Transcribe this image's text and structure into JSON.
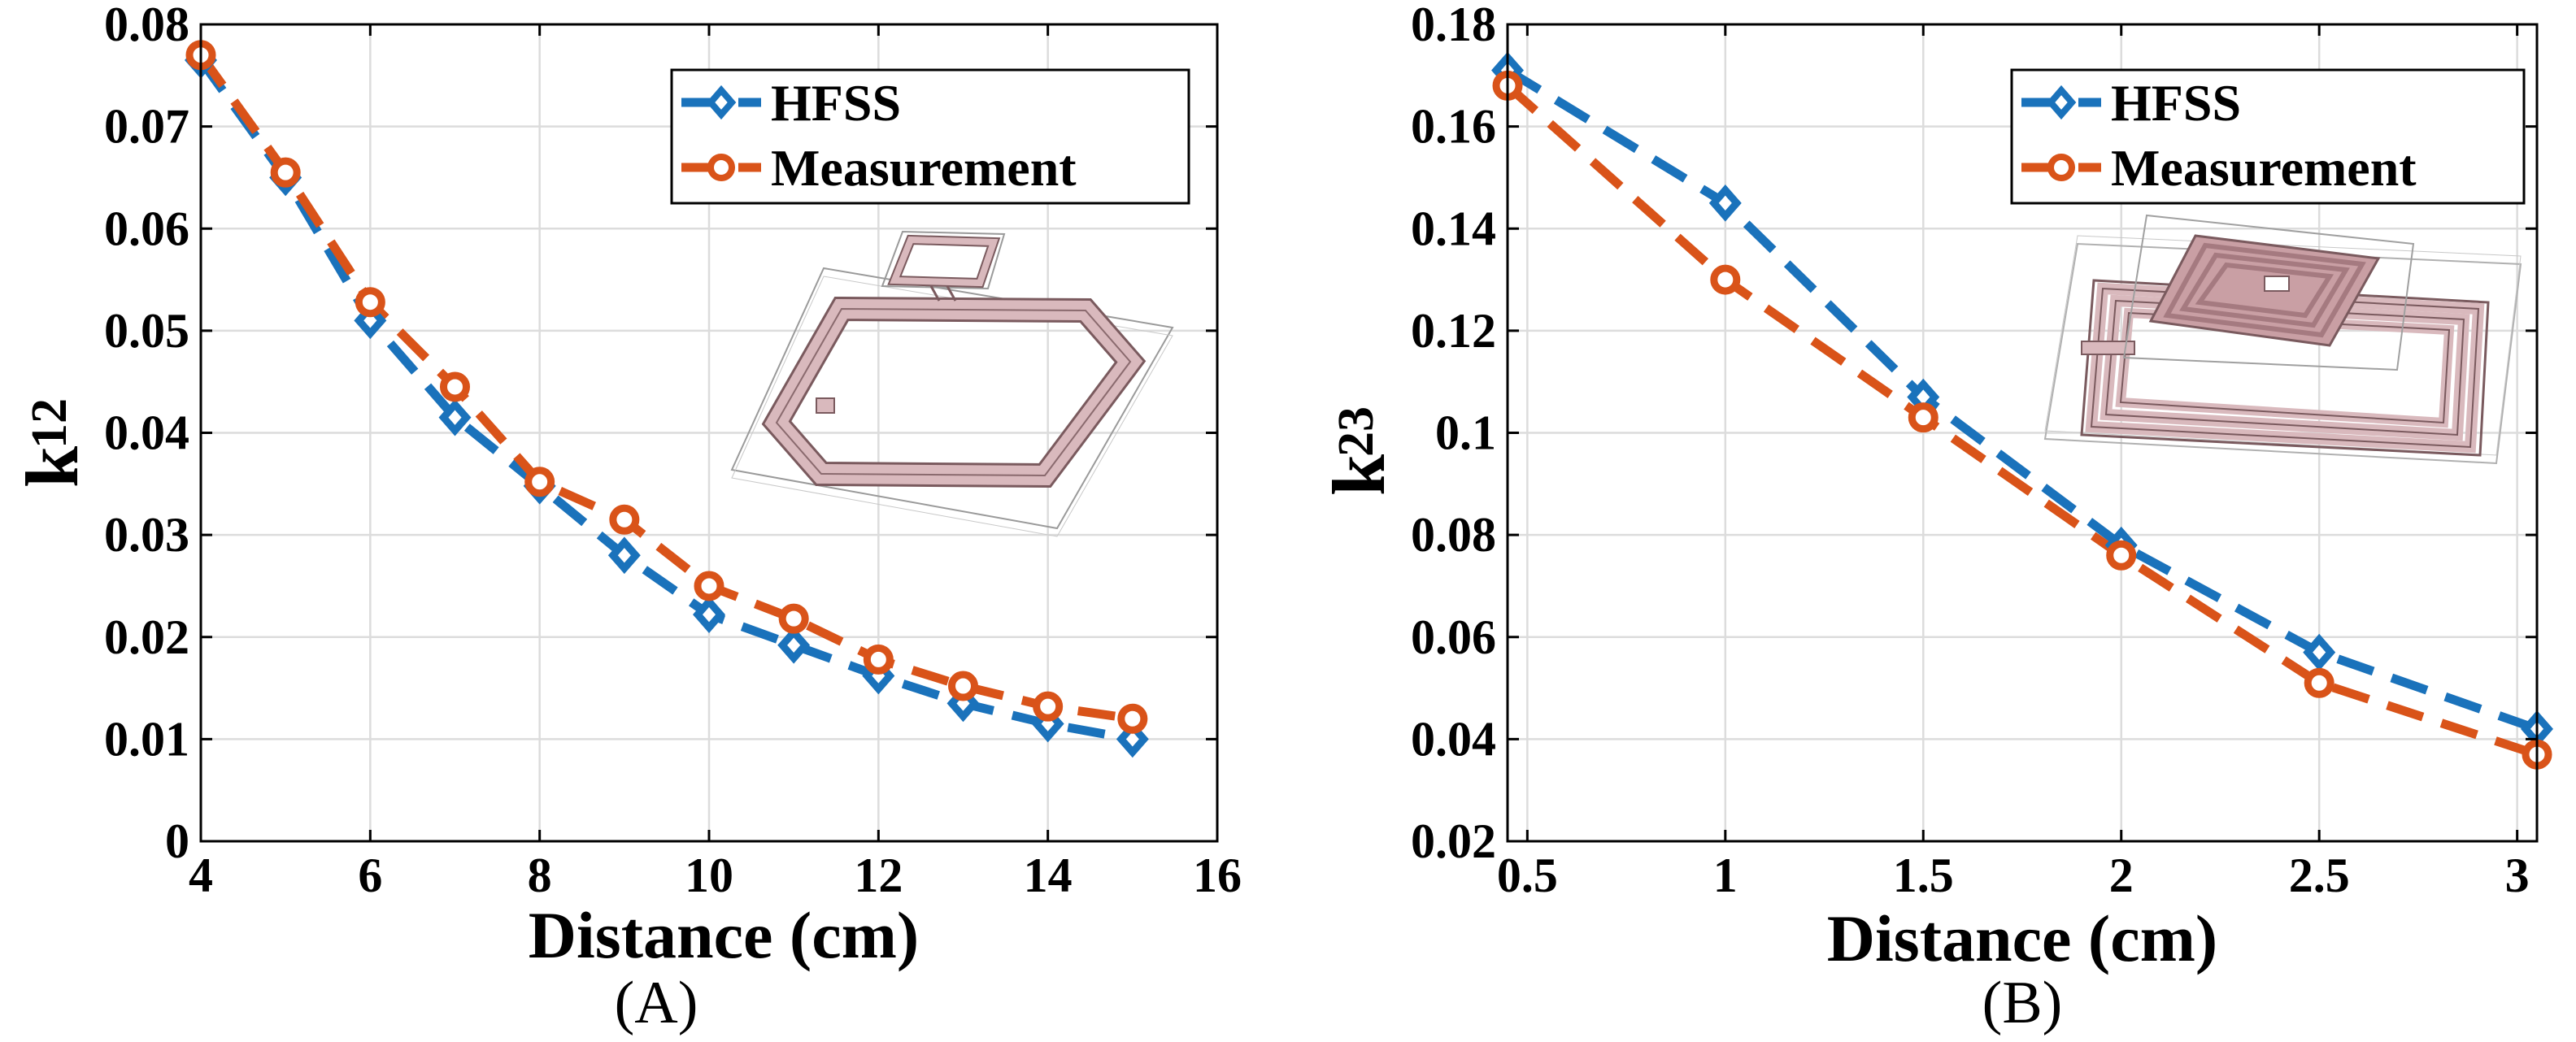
{
  "colors": {
    "hfss": "#1a72bb",
    "measurement": "#d95319",
    "inset_fill": "#d9b9bd",
    "inset_stroke": "#7a5a5e"
  },
  "chart_data": [
    {
      "type": "line",
      "caption": "(A)",
      "xlabel": "Distance (cm)",
      "ylabel_main": "k",
      "ylabel_sub": "12",
      "xlim": [
        4,
        16
      ],
      "ylim": [
        0,
        0.08
      ],
      "xticks": [
        4,
        6,
        8,
        10,
        12,
        14,
        16
      ],
      "yticks": [
        0,
        0.01,
        0.02,
        0.03,
        0.04,
        0.05,
        0.06,
        0.07,
        0.08
      ],
      "xtick_labels": [
        "4",
        "6",
        "8",
        "10",
        "12",
        "14",
        "16"
      ],
      "ytick_labels": [
        "0",
        "0.01",
        "0.02",
        "0.03",
        "0.04",
        "0.05",
        "0.06",
        "0.07",
        "0.08"
      ],
      "grid": true,
      "legend": "top-right",
      "x": [
        4,
        5,
        6,
        7,
        8,
        9,
        10,
        11,
        12,
        13,
        14,
        15
      ],
      "series": [
        {
          "name": "HFSS",
          "marker": "diamond",
          "values": [
            0.0765,
            0.065,
            0.051,
            0.0415,
            0.0348,
            0.028,
            0.0222,
            0.0192,
            0.0162,
            0.0135,
            0.0115,
            0.01
          ]
        },
        {
          "name": "Measurement",
          "marker": "circle",
          "values": [
            0.077,
            0.0655,
            0.0528,
            0.0445,
            0.0352,
            0.0315,
            0.025,
            0.0218,
            0.0178,
            0.0152,
            0.0132,
            0.012
          ]
        }
      ]
    },
    {
      "type": "line",
      "caption": "(B)",
      "xlabel": "Distance (cm)",
      "ylabel_main": "k",
      "ylabel_sub": "23",
      "xlim": [
        0.45,
        3.05
      ],
      "ylim": [
        0.02,
        0.18
      ],
      "xticks": [
        0.5,
        1,
        1.5,
        2,
        2.5,
        3
      ],
      "yticks": [
        0.02,
        0.04,
        0.06,
        0.08,
        0.1,
        0.12,
        0.14,
        0.16,
        0.18
      ],
      "xtick_labels": [
        "0.5",
        "1",
        "1.5",
        "2",
        "2.5",
        "3"
      ],
      "ytick_labels": [
        "0.02",
        "0.04",
        "0.06",
        "0.08",
        "0.1",
        "0.12",
        "0.14",
        "0.16",
        "0.18"
      ],
      "grid": true,
      "legend": "top-right",
      "x": [
        0.45,
        1,
        1.5,
        2,
        2.5,
        3.05
      ],
      "series": [
        {
          "name": "HFSS",
          "marker": "diamond",
          "values": [
            0.171,
            0.145,
            0.107,
            0.078,
            0.057,
            0.042
          ]
        },
        {
          "name": "Measurement",
          "marker": "circle",
          "values": [
            0.168,
            0.13,
            0.103,
            0.076,
            0.051,
            0.037
          ]
        }
      ]
    }
  ]
}
